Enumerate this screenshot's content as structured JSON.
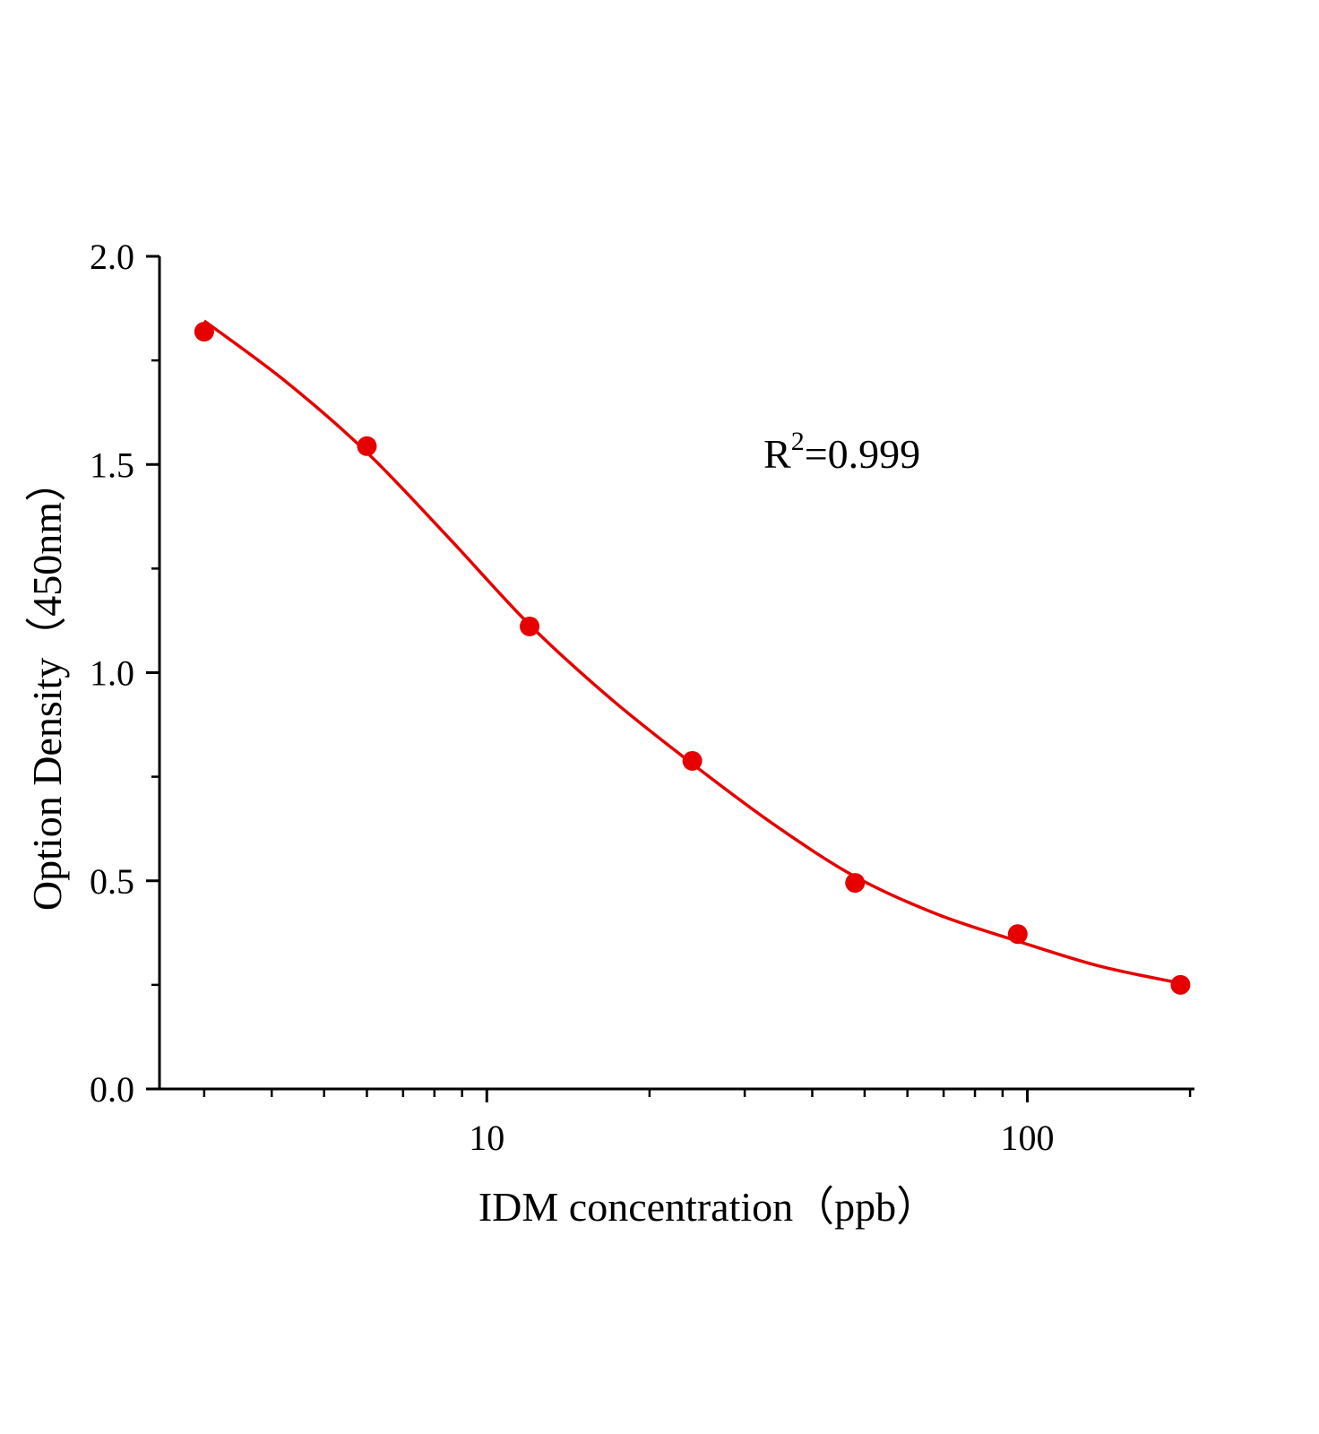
{
  "chart_data": {
    "type": "scatter",
    "x_label": "IDM concentration（ppb）",
    "y_label": "Option Density（450nm）",
    "annotation": [
      "R",
      "2",
      "=0.999"
    ],
    "x_scale": "log",
    "xlim": [
      2.48,
      203
    ],
    "ylim": [
      0,
      2
    ],
    "xticks": [
      10,
      100
    ],
    "xminor_ticks": [
      3,
      4,
      5,
      6,
      7,
      8,
      9,
      20,
      30,
      40,
      50,
      60,
      70,
      80,
      90,
      200
    ],
    "yticks": [
      {
        "value": 0,
        "label": "0.0"
      },
      0.5,
      {
        "value": 1,
        "label": "1.0"
      },
      1.5,
      {
        "value": 2,
        "label": "2.0"
      }
    ],
    "yminor_ticks": [
      0.25,
      0.75,
      1.25,
      1.75
    ],
    "series": [
      {
        "color": "#e60000",
        "x": [
          3,
          6,
          12,
          24,
          48,
          96,
          192
        ],
        "values": [
          1.819,
          1.544,
          1.111,
          0.788,
          0.495,
          0.372,
          0.25
        ]
      }
    ],
    "curve": {
      "color": "#e60000",
      "x": [
        3,
        4.24,
        6,
        8.5,
        12,
        17,
        24,
        34,
        48,
        68,
        96,
        136,
        192
      ],
      "values": [
        1.845,
        1.7,
        1.529,
        1.324,
        1.115,
        0.936,
        0.781,
        0.635,
        0.51,
        0.42,
        0.355,
        0.295,
        0.254
      ]
    }
  }
}
